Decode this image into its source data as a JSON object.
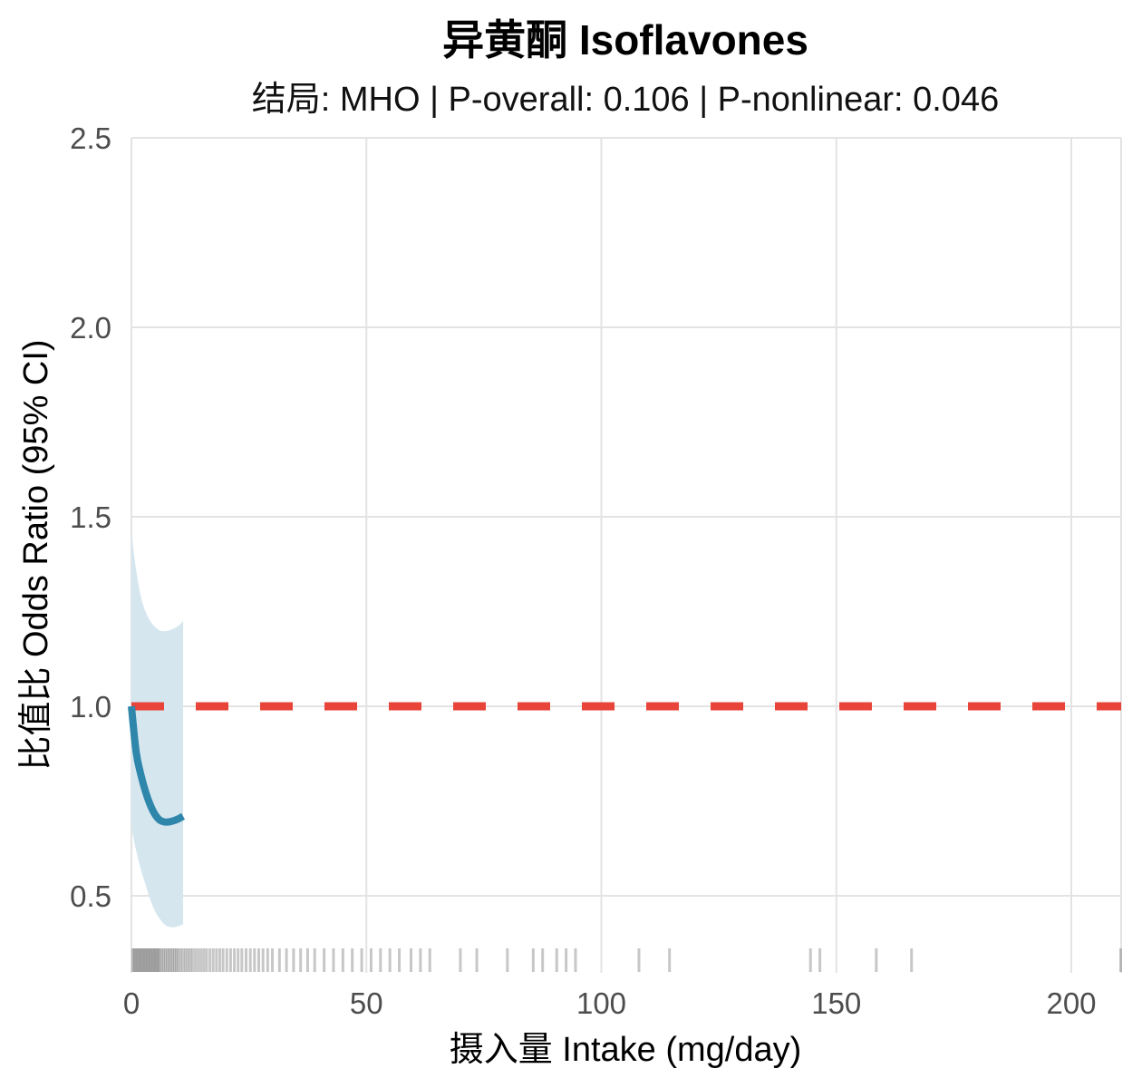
{
  "chart_data": {
    "type": "line",
    "title": "异黄酮 Isoflavones",
    "subtitle": "结局: MHO | P-overall: 0.106 | P-nonlinear: 0.046",
    "xlabel": "摄入量 Intake (mg/day)",
    "ylabel": "比值比 Odds Ratio (95% CI)",
    "xlim": [
      0,
      211
    ],
    "ylim": [
      0.3,
      2.5
    ],
    "x_ticks": [
      0,
      50,
      100,
      150,
      200
    ],
    "x_tick_labels": [
      "0",
      "50",
      "100",
      "150",
      "200"
    ],
    "y_ticks": [
      0.5,
      1.0,
      1.5,
      2.0,
      2.5
    ],
    "y_tick_labels": [
      "0.5",
      "1.0",
      "1.5",
      "2.0",
      "2.5"
    ],
    "grid": true,
    "reference_line": {
      "y": 1.0,
      "style": "dashed",
      "color": "#e8443a"
    },
    "series": [
      {
        "name": "Odds Ratio",
        "color": "#2e86ab",
        "x": [
          0,
          1,
          2,
          3,
          4,
          5,
          6,
          7,
          8,
          9,
          10,
          11
        ],
        "y": [
          1.0,
          0.88,
          0.82,
          0.775,
          0.74,
          0.715,
          0.7,
          0.695,
          0.695,
          0.698,
          0.703,
          0.71
        ]
      }
    ],
    "confidence_band": {
      "name": "95% CI",
      "color": "#d5e6ef",
      "x": [
        0,
        1,
        2,
        3,
        4,
        5,
        6,
        7,
        8,
        9,
        10,
        11
      ],
      "lower": [
        0.68,
        0.62,
        0.57,
        0.53,
        0.49,
        0.46,
        0.44,
        0.425,
        0.418,
        0.417,
        0.42,
        0.425
      ],
      "upper": [
        1.46,
        1.36,
        1.29,
        1.25,
        1.225,
        1.21,
        1.2,
        1.198,
        1.2,
        1.205,
        1.212,
        1.225
      ]
    },
    "rug_x": [
      0.3,
      0.6,
      0.9,
      1.2,
      1.5,
      1.8,
      2.1,
      2.4,
      2.7,
      3.0,
      3.3,
      3.6,
      3.9,
      4.2,
      4.5,
      4.8,
      5.1,
      5.4,
      5.7,
      6.0,
      6.4,
      6.8,
      7.2,
      7.6,
      8.0,
      8.4,
      8.8,
      9.2,
      9.6,
      10.0,
      10.5,
      11.0,
      11.5,
      12.0,
      12.5,
      13.0,
      13.6,
      14.2,
      14.8,
      15.4,
      16.0,
      16.7,
      17.4,
      18.1,
      18.8,
      19.5,
      20.3,
      21.1,
      21.9,
      22.7,
      23.5,
      24.4,
      25.3,
      26.2,
      27.1,
      28.0,
      29.0,
      30.0,
      31.5,
      33.0,
      34.5,
      36.0,
      37.5,
      39.0,
      41.0,
      43.0,
      45.0,
      47.0,
      49.0,
      51.0,
      53.0,
      55.0,
      57.0,
      59.5,
      61.5,
      63.5,
      70.0,
      73.5,
      80.0,
      85.5,
      87.5,
      90.5,
      92.5,
      94.5,
      108.0,
      114.5,
      144.5,
      146.5,
      158.5,
      166.0,
      210.5
    ]
  }
}
